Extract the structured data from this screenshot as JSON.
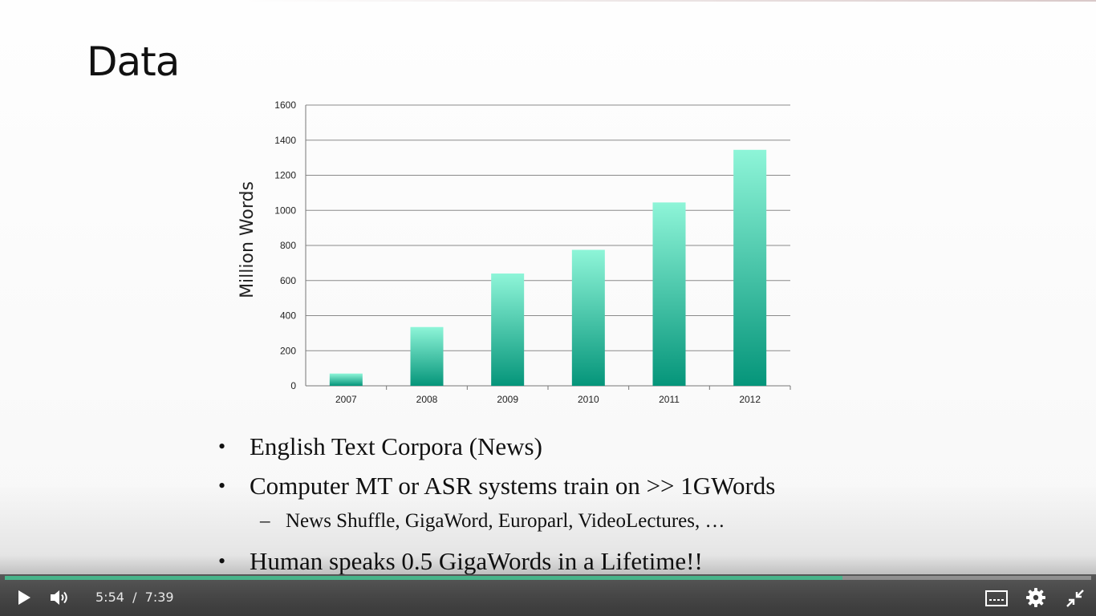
{
  "slide": {
    "title": "Data",
    "bullets": [
      {
        "level": 1,
        "marker": "•",
        "text": "English Text Corpora (News)"
      },
      {
        "level": 1,
        "marker": "•",
        "text": "Computer MT or ASR systems train on >> 1GWords"
      },
      {
        "level": 2,
        "marker": "–",
        "text": "News Shuffle, GigaWord, Europarl, VideoLectures, …"
      },
      {
        "level": 1,
        "marker": "•",
        "text": "Human speaks 0.5 GigaWords in a Lifetime!!"
      }
    ]
  },
  "chart_data": {
    "type": "bar",
    "categories": [
      "2007",
      "2008",
      "2009",
      "2010",
      "2011",
      "2012"
    ],
    "values": [
      70,
      335,
      640,
      775,
      1045,
      1345
    ],
    "title": "",
    "xlabel": "",
    "ylabel": "Million Words",
    "ylim": [
      0,
      1600
    ],
    "yticks": [
      0,
      200,
      400,
      600,
      800,
      1000,
      1200,
      1400,
      1600
    ],
    "grid": true,
    "colors": {
      "bar_top": "#8ef5d8",
      "bar_bottom": "#05957a",
      "grid": "#8a8a8a"
    }
  },
  "player": {
    "current_time": "5:54",
    "separator": "/",
    "duration": "7:39",
    "progress_fraction": 0.771,
    "icons": {
      "play": "play-icon",
      "volume": "volume-icon",
      "captions": "captions-icon",
      "settings": "gear-icon",
      "exit_fullscreen": "exit-fullscreen-icon"
    },
    "accent_color": "#48b48a"
  }
}
